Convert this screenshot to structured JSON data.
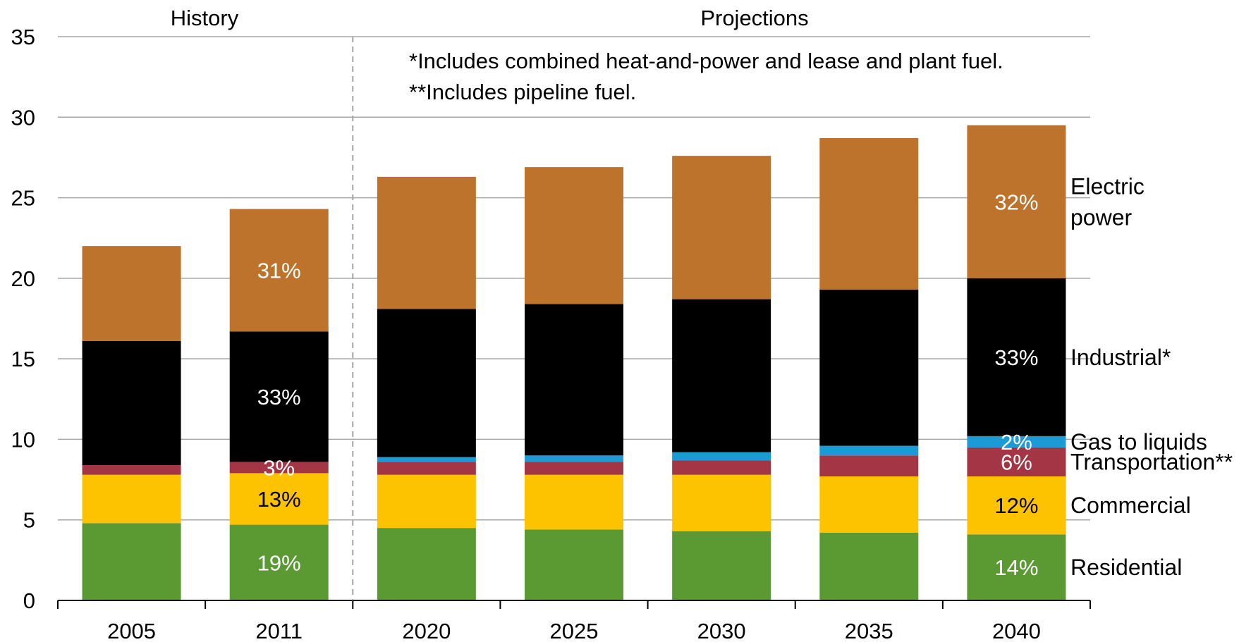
{
  "chart_data": {
    "type": "bar",
    "stacked": true,
    "categories": [
      "2005",
      "2011",
      "2020",
      "2025",
      "2030",
      "2035",
      "2040"
    ],
    "ylim": [
      0,
      35
    ],
    "yticks": [
      "0",
      "5",
      "10",
      "15",
      "20",
      "25",
      "30",
      "35"
    ],
    "grid": true,
    "section_labels": {
      "history": "History",
      "projections": "Projections"
    },
    "notes": [
      "*Includes combined heat-and-power and lease and plant fuel.",
      "**Includes pipeline fuel."
    ],
    "series": [
      {
        "name": "Residential",
        "color": "#5b9a33",
        "values": [
          4.8,
          4.7,
          4.5,
          4.4,
          4.3,
          4.2,
          4.1
        ]
      },
      {
        "name": "Commercial",
        "color": "#fdc300",
        "values": [
          3.0,
          3.2,
          3.3,
          3.4,
          3.5,
          3.5,
          3.6
        ]
      },
      {
        "name": "Transportation**",
        "color": "#a33545",
        "values": [
          0.6,
          0.7,
          0.8,
          0.8,
          0.9,
          1.3,
          1.8
        ]
      },
      {
        "name": "Gas to liquids",
        "color": "#1b9ad6",
        "values": [
          0.0,
          0.0,
          0.3,
          0.4,
          0.5,
          0.6,
          0.7
        ]
      },
      {
        "name": "Industrial*",
        "color": "#000000",
        "values": [
          7.7,
          8.1,
          9.2,
          9.4,
          9.5,
          9.7,
          9.8
        ]
      },
      {
        "name": "Electric power",
        "color": "#bd732b",
        "values": [
          5.9,
          7.6,
          8.2,
          8.5,
          8.9,
          9.4,
          9.5
        ]
      }
    ],
    "legend_labels": [
      {
        "series": "Electric power",
        "lines": [
          "Electric",
          "power"
        ]
      },
      {
        "series": "Industrial*",
        "lines": [
          "Industrial*"
        ]
      },
      {
        "series": "Gas to liquids",
        "lines": [
          "Gas to liquids"
        ]
      },
      {
        "series": "Transportation**",
        "lines": [
          "Transportation**"
        ]
      },
      {
        "series": "Commercial",
        "lines": [
          "Commercial"
        ]
      },
      {
        "series": "Residential",
        "lines": [
          "Residential"
        ]
      }
    ],
    "data_labels": [
      {
        "category": "2011",
        "series": "Electric power",
        "text": "31%",
        "color": "#ffffff"
      },
      {
        "category": "2011",
        "series": "Industrial*",
        "text": "33%",
        "color": "#ffffff"
      },
      {
        "category": "2011",
        "series": "Transportation**",
        "text": "3%",
        "color": "#ffffff"
      },
      {
        "category": "2011",
        "series": "Commercial",
        "text": "13%",
        "color": "#000000"
      },
      {
        "category": "2011",
        "series": "Residential",
        "text": "19%",
        "color": "#ffffff"
      },
      {
        "category": "2040",
        "series": "Electric power",
        "text": "32%",
        "color": "#ffffff"
      },
      {
        "category": "2040",
        "series": "Industrial*",
        "text": "33%",
        "color": "#ffffff"
      },
      {
        "category": "2040",
        "series": "Gas to liquids",
        "text": "2%",
        "color": "#ffffff"
      },
      {
        "category": "2040",
        "series": "Transportation**",
        "text": "6%",
        "color": "#ffffff"
      },
      {
        "category": "2040",
        "series": "Commercial",
        "text": "12%",
        "color": "#000000"
      },
      {
        "category": "2040",
        "series": "Residential",
        "text": "14%",
        "color": "#ffffff"
      }
    ]
  }
}
